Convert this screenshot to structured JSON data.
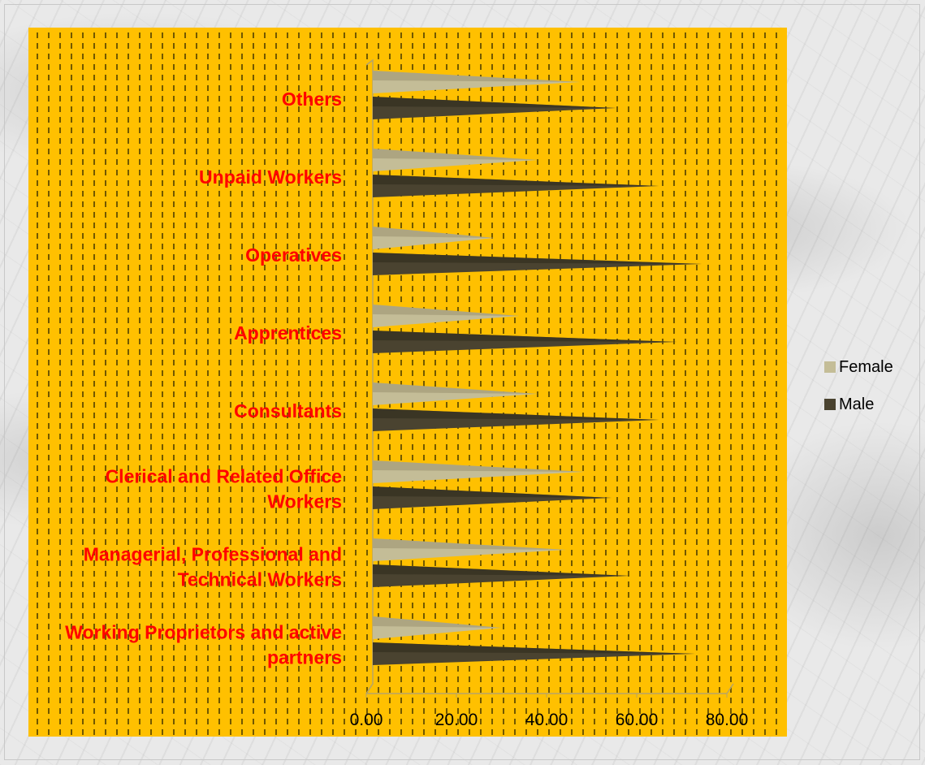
{
  "chart_data": {
    "type": "bar",
    "orientation": "horizontal",
    "style": "3d-cone",
    "categories": [
      "Working Proprietors and active partners",
      "Managerial, Professional and Technical Workers",
      "Clerical and Related Office Workers",
      "Consultants",
      "Apprentices",
      "Operatives",
      "Unpaid Workers",
      "Others"
    ],
    "series": [
      {
        "name": "Female",
        "color": "#c4bd97",
        "values": [
          28.5,
          43,
          47,
          36.5,
          32.5,
          27,
          36.5,
          46
        ]
      },
      {
        "name": "Male",
        "color": "#4a4330",
        "values": [
          71.5,
          57,
          53,
          63.5,
          67.5,
          73,
          63.5,
          54
        ]
      }
    ],
    "x_ticks": [
      "0.00",
      "20.00",
      "40.00",
      "60.00",
      "80.00"
    ],
    "xlim": [
      0,
      80
    ],
    "label_color": "#ff0000",
    "legend_position": "right"
  }
}
